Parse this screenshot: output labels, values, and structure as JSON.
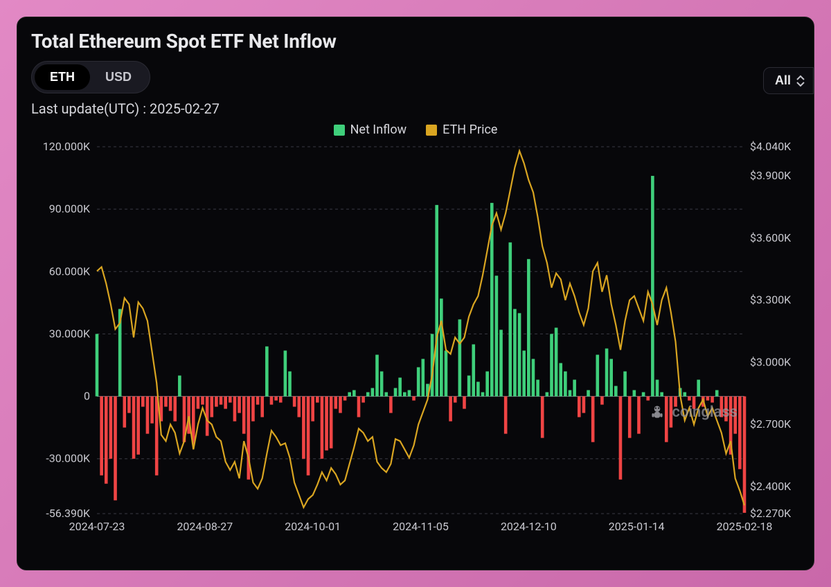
{
  "card": {
    "title": "Total Ethereum Spot ETF Net Inflow",
    "last_update_label": "Last update(UTC) : ",
    "last_update_value": "2025-02-27"
  },
  "segmented": {
    "options": [
      "ETH",
      "USD"
    ],
    "active_index": 0
  },
  "range": {
    "label": "All"
  },
  "legend": {
    "items": [
      {
        "label": "Net Inflow",
        "color": "#3fcf7b"
      },
      {
        "label": "ETH Price",
        "color": "#d9a521"
      }
    ]
  },
  "watermark": {
    "text": "coinglass"
  },
  "chart": {
    "type": "bar+line",
    "background_color": "#07070a",
    "grid_color": "#3a3a44",
    "axis_text_color": "#c9c9d0",
    "axis_fontsize": 16,
    "pos_bar_color": "#3fcf7b",
    "neg_bar_color": "#ef4444",
    "line_color": "#d9a521",
    "x_ticks": [
      "2024-07-23",
      "2024-08-27",
      "2024-10-01",
      "2024-11-05",
      "2024-12-10",
      "2025-01-14",
      "2025-02-18"
    ],
    "y_left": {
      "min": -56.39,
      "max": 120,
      "ticks": [
        -56.39,
        -30,
        0,
        30,
        60,
        90,
        120
      ],
      "tick_labels": [
        "-56.390K",
        "-30.000K",
        "0",
        "30.000K",
        "60.000K",
        "90.000K",
        "120.000K"
      ]
    },
    "y_right": {
      "min": 2270,
      "max": 4040,
      "ticks": [
        2270,
        2400,
        2700,
        3000,
        3300,
        3600,
        3900,
        4040
      ],
      "tick_labels": [
        "$2.270K",
        "$2.400K",
        "$2.700K",
        "$3.000K",
        "$3.300K",
        "$3.600K",
        "$3.900K",
        "$4.040K"
      ]
    },
    "bars": [
      30,
      -38,
      -42,
      -30,
      -50,
      42,
      -15,
      -8,
      -30,
      -28,
      -5,
      -18,
      -13,
      -38,
      -12,
      -5,
      -7,
      -12,
      10,
      -22,
      -18,
      -23,
      -6,
      -4,
      -19,
      -10,
      -5,
      -4,
      -6,
      -3,
      -12,
      -8,
      -18,
      -40,
      -12,
      -4,
      -10,
      24,
      -4,
      -2,
      -3,
      22,
      12,
      -5,
      -10,
      -30,
      -38,
      -12,
      -3,
      -30,
      -26,
      -25,
      -6,
      -8,
      -2,
      2,
      3,
      -10,
      -3,
      2,
      4,
      20,
      12,
      2,
      -8,
      4,
      9,
      2,
      3,
      -2,
      14,
      18,
      6,
      30,
      92,
      47,
      22,
      -12,
      -3,
      37,
      -6,
      10,
      25,
      7,
      2,
      12,
      93,
      58,
      32,
      -18,
      74,
      42,
      40,
      22,
      66,
      18,
      8,
      -20,
      2,
      30,
      33,
      16,
      12,
      3,
      8,
      -10,
      -8,
      3,
      -22,
      20,
      -4,
      23,
      18,
      5,
      -40,
      12,
      -20,
      3,
      -18,
      2,
      -2,
      106,
      8,
      2,
      -22,
      -15,
      -5,
      4,
      2,
      -2,
      -6,
      8,
      -5,
      -2,
      -3,
      3,
      -10,
      -12,
      -28,
      -18,
      -35,
      -56
    ],
    "price": [
      3440,
      3460,
      3380,
      3280,
      3160,
      3190,
      3310,
      3280,
      3120,
      3290,
      3260,
      3200,
      3050,
      2900,
      2650,
      2620,
      2700,
      2660,
      2560,
      2620,
      2740,
      2580,
      2700,
      2780,
      2720,
      2700,
      2640,
      2620,
      2520,
      2480,
      2520,
      2440,
      2620,
      2540,
      2420,
      2390,
      2440,
      2560,
      2670,
      2640,
      2600,
      2610,
      2540,
      2420,
      2360,
      2300,
      2340,
      2360,
      2410,
      2470,
      2430,
      2490,
      2460,
      2410,
      2430,
      2510,
      2590,
      2680,
      2660,
      2620,
      2640,
      2520,
      2490,
      2470,
      2510,
      2630,
      2620,
      2580,
      2540,
      2600,
      2700,
      2760,
      2820,
      2940,
      3120,
      3200,
      3060,
      3040,
      3120,
      3090,
      3120,
      3220,
      3280,
      3320,
      3420,
      3540,
      3660,
      3720,
      3640,
      3720,
      3830,
      3940,
      4020,
      3960,
      3880,
      3820,
      3700,
      3560,
      3480,
      3360,
      3430,
      3400,
      3300,
      3380,
      3320,
      3240,
      3180,
      3260,
      3440,
      3480,
      3340,
      3420,
      3280,
      3180,
      3060,
      3200,
      3300,
      3320,
      3260,
      3200,
      3340,
      3280,
      3180,
      3300,
      3360,
      3240,
      3100,
      2840,
      2720,
      2780,
      2700,
      2780,
      2820,
      2740,
      2780,
      2720,
      2660,
      2560,
      2620,
      2440,
      2380,
      2310
    ]
  }
}
